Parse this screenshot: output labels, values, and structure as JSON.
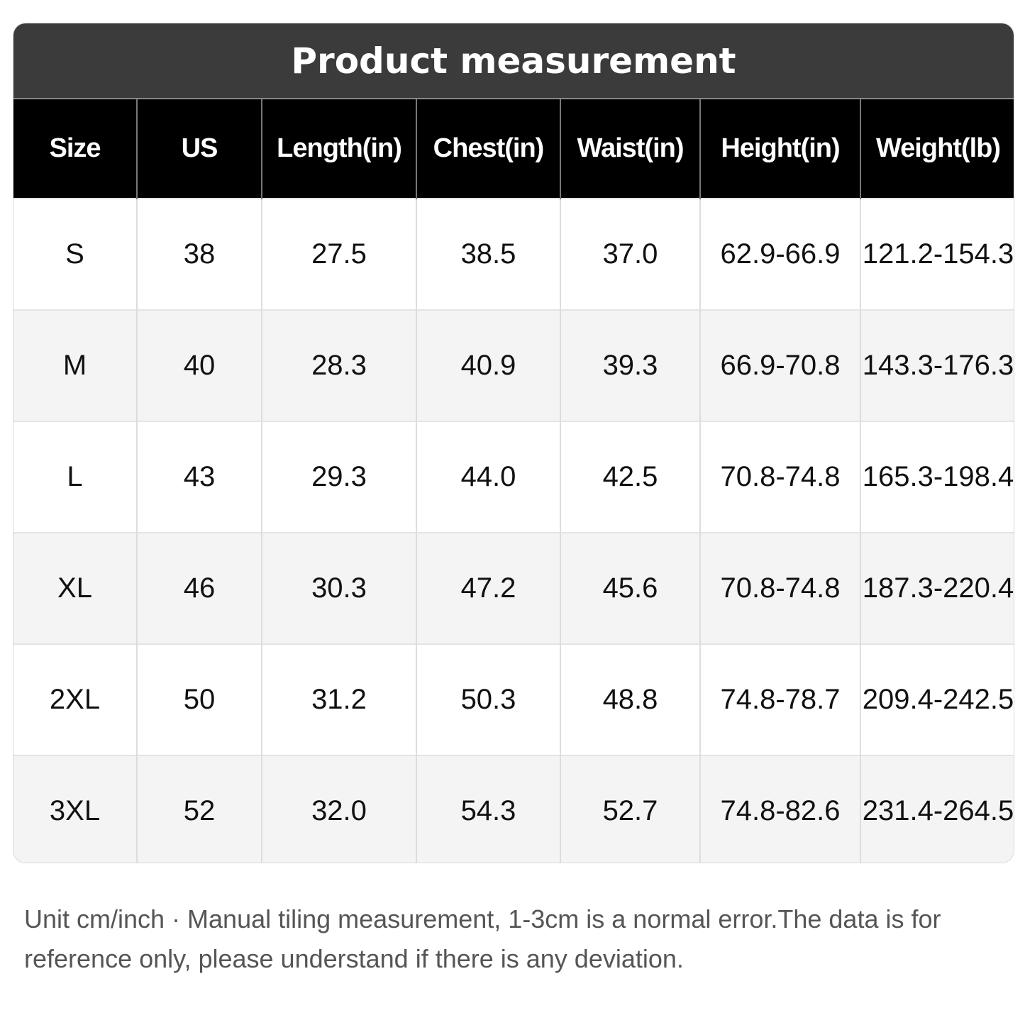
{
  "title": "Product measurement",
  "table": {
    "columns": [
      "Size",
      "US",
      "Length(in)",
      "Chest(in)",
      "Waist(in)",
      "Height(in)",
      "Weight(lb)"
    ],
    "rows": [
      [
        "S",
        "38",
        "27.5",
        "38.5",
        "37.0",
        "62.9-66.9",
        "121.2-154.3"
      ],
      [
        "M",
        "40",
        "28.3",
        "40.9",
        "39.3",
        "66.9-70.8",
        "143.3-176.3"
      ],
      [
        "L",
        "43",
        "29.3",
        "44.0",
        "42.5",
        "70.8-74.8",
        "165.3-198.4"
      ],
      [
        "XL",
        "46",
        "30.3",
        "47.2",
        "45.6",
        "70.8-74.8",
        "187.3-220.4"
      ],
      [
        "2XL",
        "50",
        "31.2",
        "50.3",
        "48.8",
        "74.8-78.7",
        "209.4-242.5"
      ],
      [
        "3XL",
        "52",
        "32.0",
        "54.3",
        "52.7",
        "74.8-82.6",
        "231.4-264.5"
      ]
    ]
  },
  "note": "Unit cm/inch · Manual tiling measurement, 1-3cm is a normal error.The data is for reference only, please understand if there is any deviation."
}
